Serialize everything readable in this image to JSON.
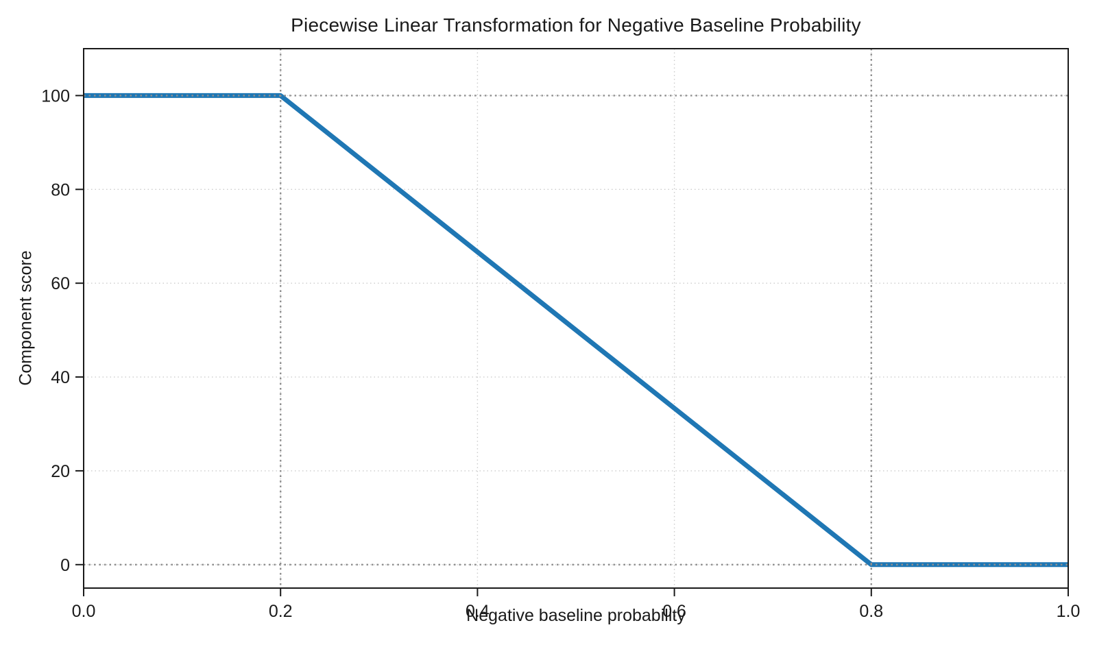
{
  "figure": {
    "background": "#ffffff"
  },
  "chart_data": {
    "type": "line",
    "title": "Piecewise Linear Transformation for Negative Baseline Probability",
    "xlabel": "Negative baseline probability",
    "ylabel": "Component score",
    "x": [
      0.0,
      0.2,
      0.8,
      1.0
    ],
    "y": [
      100,
      100,
      0,
      0
    ],
    "xlim": [
      0.0,
      1.0
    ],
    "ylim": [
      -5,
      110
    ],
    "xticks": [
      0.0,
      0.2,
      0.4,
      0.6,
      0.8,
      1.0
    ],
    "xtick_labels": [
      "0.0",
      "0.2",
      "0.4",
      "0.6",
      "0.8",
      "1.0"
    ],
    "yticks": [
      0,
      20,
      40,
      60,
      80,
      100
    ],
    "ytick_labels": [
      "0",
      "20",
      "40",
      "60",
      "80",
      "100"
    ],
    "grid": true,
    "grid_style": "dotted",
    "legend": "none",
    "reference_lines": {
      "vertical_x": [
        0.2,
        0.8
      ],
      "horizontal_y": [
        0,
        100
      ]
    },
    "colors": {
      "line": "#1f77b4",
      "grid": "#cbcbcb",
      "ref": "#8f8f8f",
      "text": "#1a1a1a",
      "spine": "#1a1a1a",
      "background": "#ffffff"
    }
  }
}
